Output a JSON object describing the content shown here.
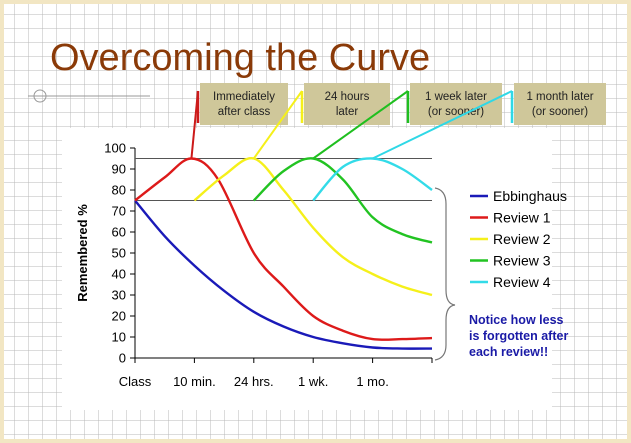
{
  "slide": {
    "title": "Overcoming the Curve",
    "callouts": [
      {
        "label": "Immediately\nafter class",
        "color": "#cc1a1a"
      },
      {
        "label": "24 hours\nlater",
        "color": "#f5f01a"
      },
      {
        "label": "1 week later\n(or sooner)",
        "color": "#1fbf1f"
      },
      {
        "label": "1 month later\n(or sooner)",
        "color": "#2fd8e6"
      }
    ],
    "note": "Notice how less\nis forgotten after\neach review!!"
  },
  "chart_data": {
    "type": "line",
    "title": "",
    "xlabel": "",
    "ylabel": "Remembered %",
    "x_ticks": [
      "Class",
      "10 min.",
      "24 hrs.",
      "1 wk.",
      "1 mo."
    ],
    "ylim": [
      0,
      100
    ],
    "y_ticks": [
      0,
      10,
      20,
      30,
      40,
      50,
      60,
      70,
      80,
      90,
      100
    ],
    "grid": false,
    "legend_position": "right",
    "reference_lines": [
      95,
      75
    ],
    "series": [
      {
        "name": "Ebbinghaus",
        "color": "#1a1ab8",
        "x": [
          0,
          0.5,
          1,
          1.5,
          2,
          2.5,
          3,
          3.5,
          4,
          4.5,
          5
        ],
        "y": [
          75,
          58,
          44,
          32,
          22,
          15,
          10,
          7,
          5,
          4.5,
          4.5
        ]
      },
      {
        "name": "Review 1",
        "color": "#dd1a1a",
        "x": [
          0,
          0.5,
          0.95,
          1.4,
          2,
          2.5,
          3,
          3.5,
          4,
          4.5,
          5
        ],
        "y": [
          75,
          86,
          95,
          85,
          50,
          34,
          20,
          13,
          9,
          9,
          9.5
        ]
      },
      {
        "name": "Review 2",
        "color": "#f5f01a",
        "x": [
          1,
          1.5,
          2,
          2.5,
          3,
          3.5,
          4,
          4.5,
          5
        ],
        "y": [
          75,
          87,
          95,
          80,
          62,
          48,
          40,
          34,
          30
        ]
      },
      {
        "name": "Review 3",
        "color": "#22c322",
        "x": [
          2,
          2.5,
          3,
          3.5,
          4,
          4.5,
          5
        ],
        "y": [
          75,
          89,
          95,
          85,
          67,
          59,
          55
        ]
      },
      {
        "name": "Review 4",
        "color": "#33dbe8",
        "x": [
          3,
          3.5,
          4,
          4.5,
          5
        ],
        "y": [
          75,
          91,
          95,
          90,
          80
        ]
      }
    ]
  }
}
